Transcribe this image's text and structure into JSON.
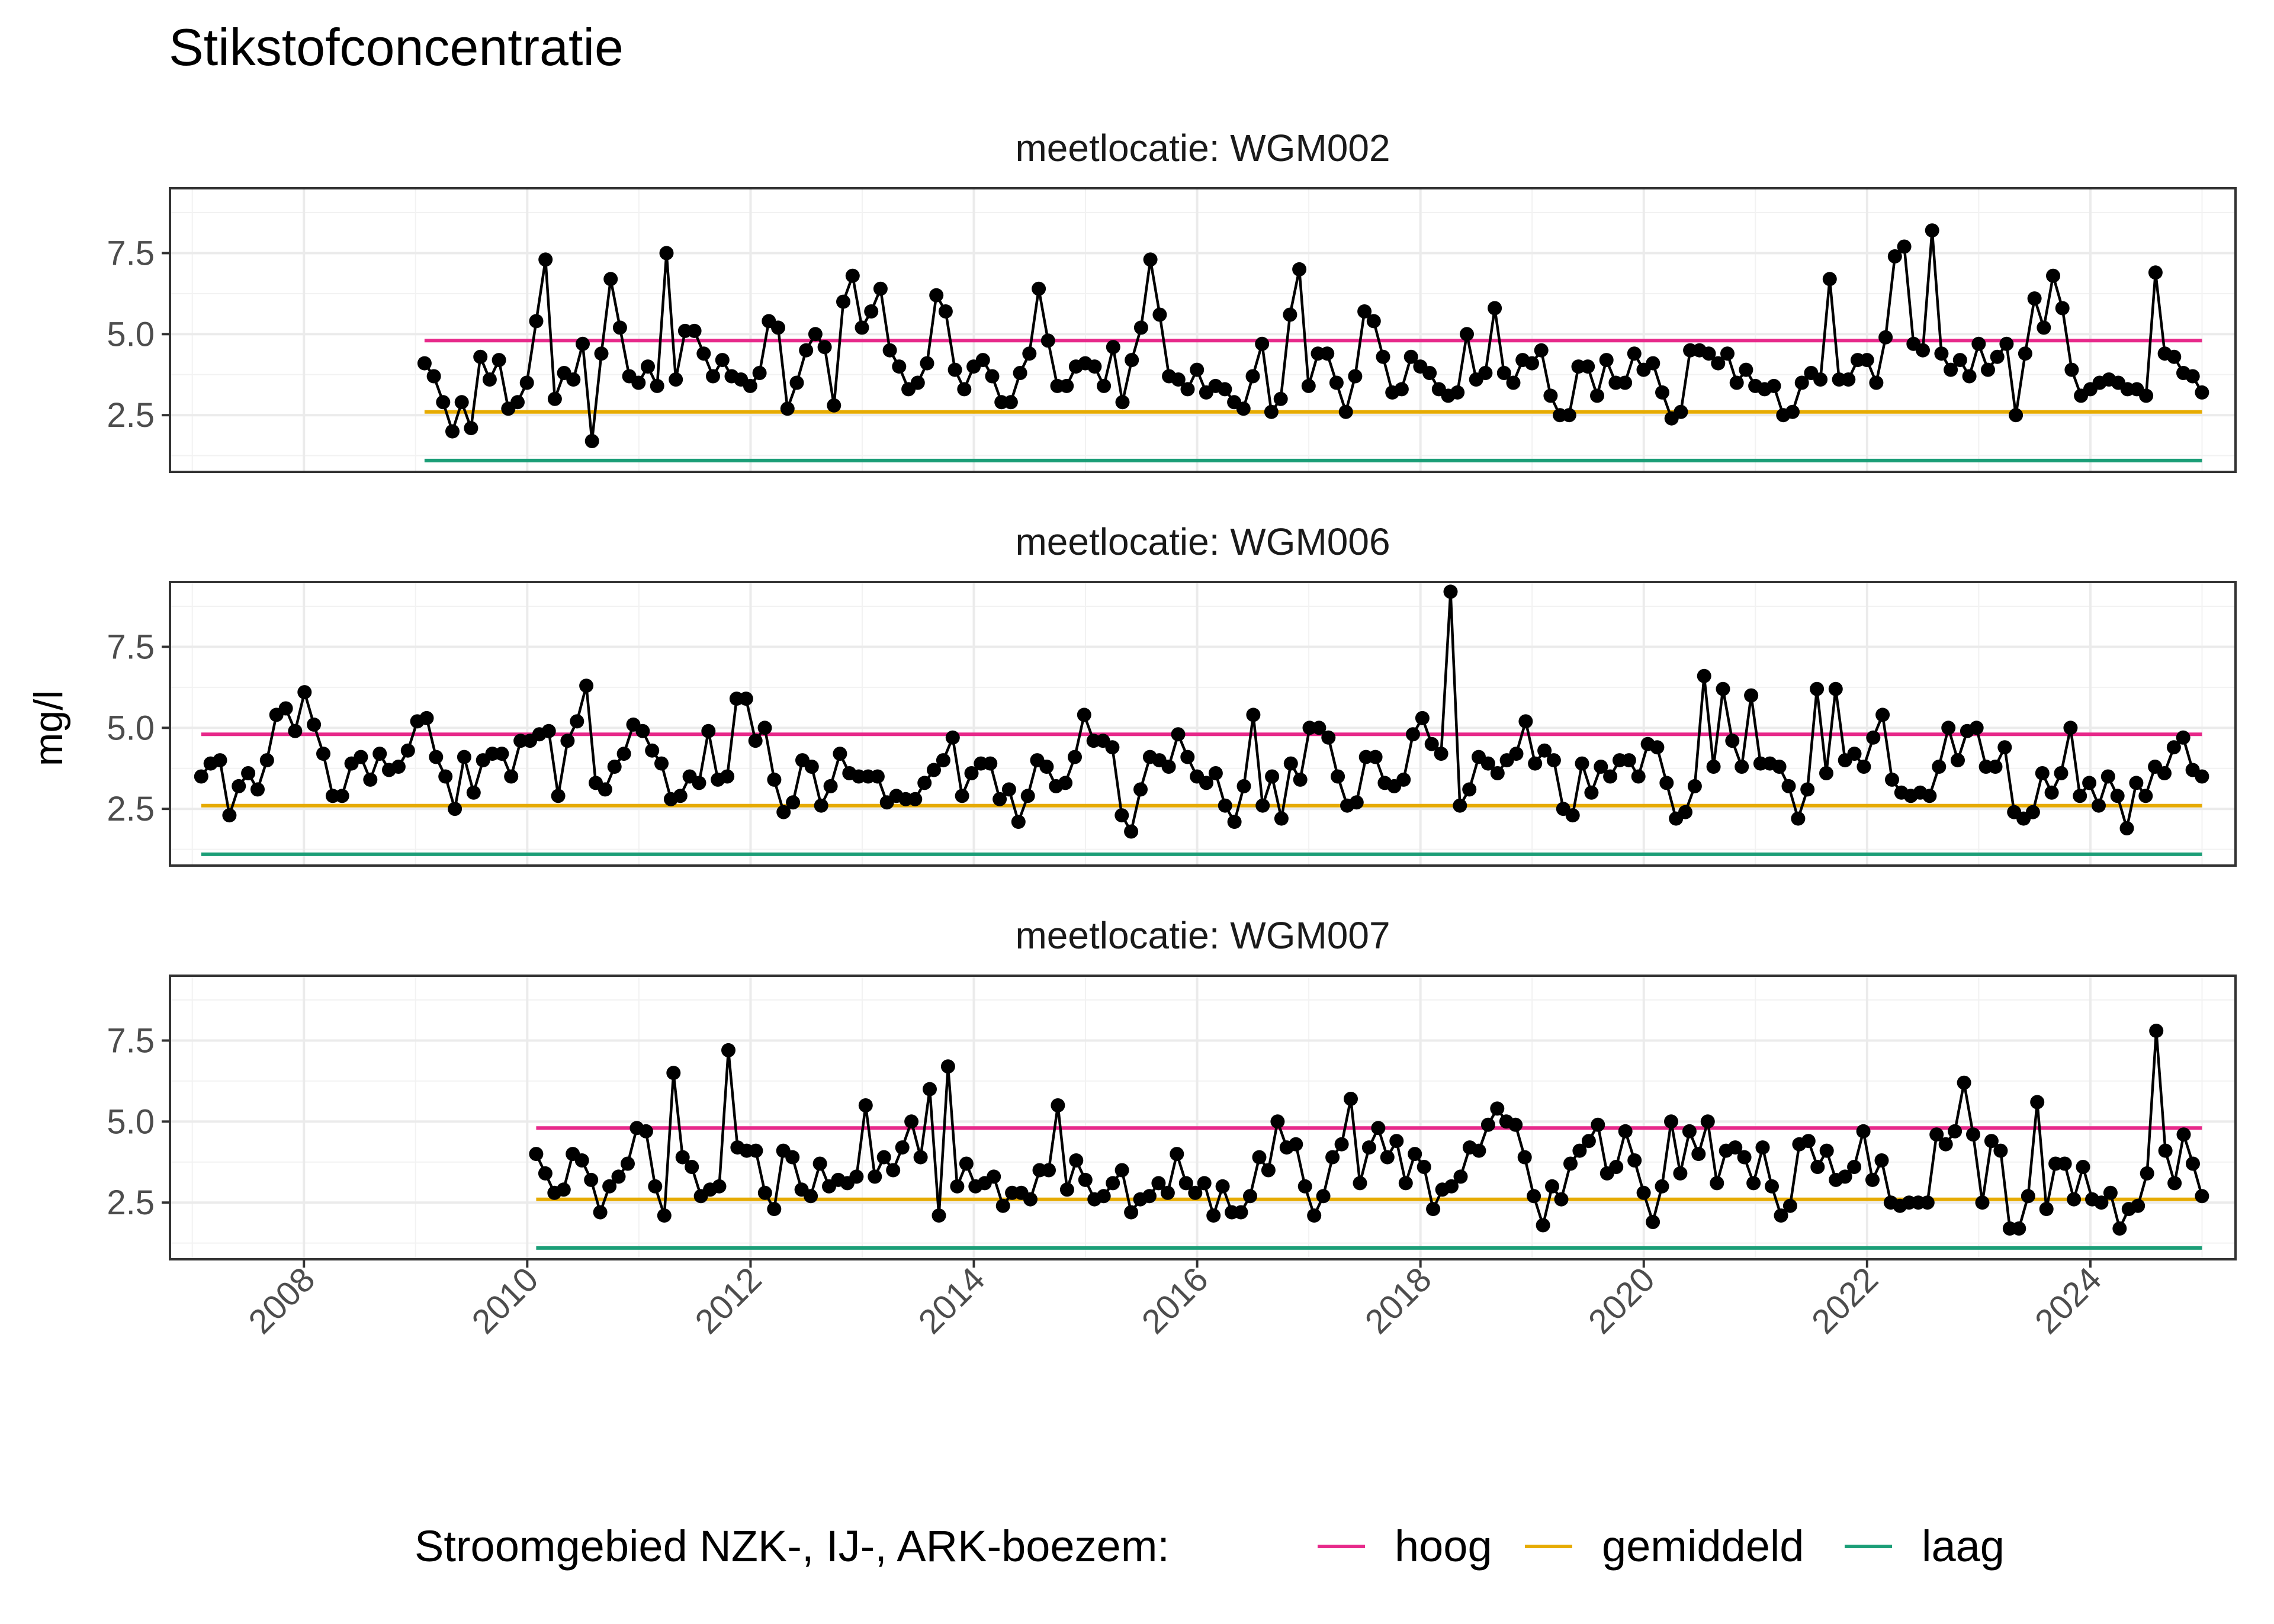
{
  "chart_data": {
    "type": "line",
    "title": "Stikstofconcentratie",
    "ylabel": "mg/l",
    "xlabel": "",
    "xlim": [
      2006.8,
      2025.3
    ],
    "ylim": [
      0.75,
      9.5
    ],
    "x_ticks": [
      2008,
      2010,
      2012,
      2014,
      2016,
      2018,
      2020,
      2022,
      2024
    ],
    "y_ticks": [
      2.5,
      5.0,
      7.5
    ],
    "y_tick_labels": [
      "2.5",
      "5.0",
      "7.5"
    ],
    "grid": true,
    "legend": {
      "title": "Stroomgebied NZK-, IJ-, ARK-boezem:",
      "position": "bottom",
      "entries": [
        {
          "name": "hoog",
          "color": "#e7298a",
          "value": 4.8
        },
        {
          "name": "gemiddeld",
          "color": "#e6ab02",
          "value": 2.6
        },
        {
          "name": "laag",
          "color": "#1b9e77",
          "value": 1.1
        }
      ]
    },
    "panels": [
      {
        "strip": "meetlocatie: WGM002",
        "start": 2009.08,
        "end": 2025.0,
        "values": [
          4.1,
          3.7,
          2.9,
          2.0,
          2.9,
          2.1,
          4.3,
          3.6,
          4.2,
          2.7,
          2.9,
          3.5,
          5.4,
          7.3,
          3.0,
          3.8,
          3.6,
          4.7,
          1.7,
          4.4,
          6.7,
          5.2,
          3.7,
          3.5,
          4.0,
          3.4,
          7.5,
          3.6,
          5.1,
          5.1,
          4.4,
          3.7,
          4.2,
          3.7,
          3.6,
          3.4,
          3.8,
          5.4,
          5.2,
          2.7,
          3.5,
          4.5,
          5.0,
          4.6,
          2.8,
          6.0,
          6.8,
          5.2,
          5.7,
          6.4,
          4.5,
          4.0,
          3.3,
          3.5,
          4.1,
          6.2,
          5.7,
          3.9,
          3.3,
          4.0,
          4.2,
          3.7,
          2.9,
          2.9,
          3.8,
          4.4,
          6.4,
          4.8,
          3.4,
          3.4,
          4.0,
          4.1,
          4.0,
          3.4,
          4.6,
          2.9,
          4.2,
          5.2,
          7.3,
          5.6,
          3.7,
          3.6,
          3.3,
          3.9,
          3.2,
          3.4,
          3.3,
          2.9,
          2.7,
          3.7,
          4.7,
          2.6,
          3.0,
          5.6,
          7.0,
          3.4,
          4.4,
          4.4,
          3.5,
          2.6,
          3.7,
          5.7,
          5.4,
          4.3,
          3.2,
          3.3,
          4.3,
          4.0,
          3.8,
          3.3,
          3.1,
          3.2,
          5.0,
          3.6,
          3.8,
          5.8,
          3.8,
          3.5,
          4.2,
          4.1,
          4.5,
          3.1,
          2.5,
          2.5,
          4.0,
          4.0,
          3.1,
          4.2,
          3.5,
          3.5,
          4.4,
          3.9,
          4.1,
          3.2,
          2.4,
          2.6,
          4.5,
          4.5,
          4.4,
          4.1,
          4.4,
          3.5,
          3.9,
          3.4,
          3.3,
          3.4,
          2.5,
          2.6,
          3.5,
          3.8,
          3.6,
          6.7,
          3.6,
          3.6,
          4.2,
          4.2,
          3.5,
          4.9,
          7.4,
          7.7,
          4.7,
          4.5,
          8.2,
          4.4,
          3.9,
          4.2,
          3.7,
          4.7,
          3.9,
          4.3,
          4.7,
          2.5,
          4.4,
          6.1,
          5.2,
          6.8,
          5.8,
          3.9,
          3.1,
          3.3,
          3.5,
          3.6,
          3.5,
          3.3,
          3.3,
          3.1,
          6.9,
          4.4,
          4.3,
          3.8,
          3.7,
          3.2
        ]
      },
      {
        "strip": "meetlocatie: WGM006",
        "start": 2007.08,
        "end": 2025.0,
        "values": [
          3.5,
          3.9,
          4.0,
          2.3,
          3.2,
          3.6,
          3.1,
          4.0,
          5.4,
          5.6,
          4.9,
          6.1,
          5.1,
          4.2,
          2.9,
          2.9,
          3.9,
          4.1,
          3.4,
          4.2,
          3.7,
          3.8,
          4.3,
          5.2,
          5.3,
          4.1,
          3.5,
          2.5,
          4.1,
          3.0,
          4.0,
          4.2,
          4.2,
          3.5,
          4.6,
          4.6,
          4.8,
          4.9,
          2.9,
          4.6,
          5.2,
          6.3,
          3.3,
          3.1,
          3.8,
          4.2,
          5.1,
          4.9,
          4.3,
          3.9,
          2.8,
          2.9,
          3.5,
          3.3,
          4.9,
          3.4,
          3.5,
          5.9,
          5.9,
          4.6,
          5.0,
          3.4,
          2.4,
          2.7,
          4.0,
          3.8,
          2.6,
          3.2,
          4.2,
          3.6,
          3.5,
          3.5,
          3.5,
          2.7,
          2.9,
          2.8,
          2.8,
          3.3,
          3.7,
          4.0,
          4.7,
          2.9,
          3.6,
          3.9,
          3.9,
          2.8,
          3.1,
          2.1,
          2.9,
          4.0,
          3.8,
          3.2,
          3.3,
          4.1,
          5.4,
          4.6,
          4.6,
          4.4,
          2.3,
          1.8,
          3.1,
          4.1,
          4.0,
          3.8,
          4.8,
          4.1,
          3.5,
          3.3,
          3.6,
          2.6,
          2.1,
          3.2,
          5.4,
          2.6,
          3.5,
          2.2,
          3.9,
          3.4,
          5.0,
          5.0,
          4.7,
          3.5,
          2.6,
          2.7,
          4.1,
          4.1,
          3.3,
          3.2,
          3.4,
          4.8,
          5.3,
          4.5,
          4.2,
          9.2,
          2.6,
          3.1,
          4.1,
          3.9,
          3.6,
          4.0,
          4.2,
          5.2,
          3.9,
          4.3,
          4.0,
          2.5,
          2.3,
          3.9,
          3.0,
          3.8,
          3.5,
          4.0,
          4.0,
          3.5,
          4.5,
          4.4,
          3.3,
          2.2,
          2.4,
          3.2,
          6.6,
          3.8,
          6.2,
          4.6,
          3.8,
          6.0,
          3.9,
          3.9,
          3.8,
          3.2,
          2.2,
          3.1,
          6.2,
          3.6,
          6.2,
          4.0,
          4.2,
          3.8,
          4.7,
          5.4,
          3.4,
          3.0,
          2.9,
          3.0,
          2.9,
          3.8,
          5.0,
          4.0,
          4.9,
          5.0,
          3.8,
          3.8,
          4.4,
          2.4,
          2.2,
          2.4,
          3.6,
          3.0,
          3.6,
          5.0,
          2.9,
          3.3,
          2.6,
          3.5,
          2.9,
          1.9,
          3.3,
          2.9,
          3.8,
          3.6,
          4.4,
          4.7,
          3.7,
          3.5
        ]
      },
      {
        "strip": "meetlocatie: WGM007",
        "start": 2010.08,
        "end": 2025.0,
        "values": [
          4.0,
          3.4,
          2.8,
          2.9,
          4.0,
          3.8,
          3.2,
          2.2,
          3.0,
          3.3,
          3.7,
          4.8,
          4.7,
          3.0,
          2.1,
          6.5,
          3.9,
          3.6,
          2.7,
          2.9,
          3.0,
          7.2,
          4.2,
          4.1,
          4.1,
          2.8,
          2.3,
          4.1,
          3.9,
          2.9,
          2.7,
          3.7,
          3.0,
          3.2,
          3.1,
          3.3,
          5.5,
          3.3,
          3.9,
          3.5,
          4.2,
          5.0,
          3.9,
          6.0,
          2.1,
          6.7,
          3.0,
          3.7,
          3.0,
          3.1,
          3.3,
          2.4,
          2.8,
          2.8,
          2.6,
          3.5,
          3.5,
          5.5,
          2.9,
          3.8,
          3.2,
          2.6,
          2.7,
          3.1,
          3.5,
          2.2,
          2.6,
          2.7,
          3.1,
          2.8,
          4.0,
          3.1,
          2.8,
          3.1,
          2.1,
          3.0,
          2.2,
          2.2,
          2.7,
          3.9,
          3.5,
          5.0,
          4.2,
          4.3,
          3.0,
          2.1,
          2.7,
          3.9,
          4.3,
          5.7,
          3.1,
          4.2,
          4.8,
          3.9,
          4.4,
          3.1,
          4.0,
          3.6,
          2.3,
          2.9,
          3.0,
          3.3,
          4.2,
          4.1,
          4.9,
          5.4,
          5.0,
          4.9,
          3.9,
          2.7,
          1.8,
          3.0,
          2.6,
          3.7,
          4.1,
          4.4,
          4.9,
          3.4,
          3.6,
          4.7,
          3.8,
          2.8,
          1.9,
          3.0,
          5.0,
          3.4,
          4.7,
          4.0,
          5.0,
          3.1,
          4.1,
          4.2,
          3.9,
          3.1,
          4.2,
          3.0,
          2.1,
          2.4,
          4.3,
          4.4,
          3.6,
          4.1,
          3.2,
          3.3,
          3.6,
          4.7,
          3.2,
          3.8,
          2.5,
          2.4,
          2.5,
          2.5,
          2.5,
          4.6,
          4.3,
          4.7,
          6.2,
          4.6,
          2.5,
          4.4,
          4.1,
          1.7,
          1.7,
          2.7,
          5.6,
          2.3,
          3.7,
          3.7,
          2.6,
          3.6,
          2.6,
          2.5,
          2.8,
          1.7,
          2.3,
          2.4,
          3.4,
          7.8,
          4.1,
          3.1,
          4.6,
          3.7,
          2.7
        ]
      }
    ]
  }
}
